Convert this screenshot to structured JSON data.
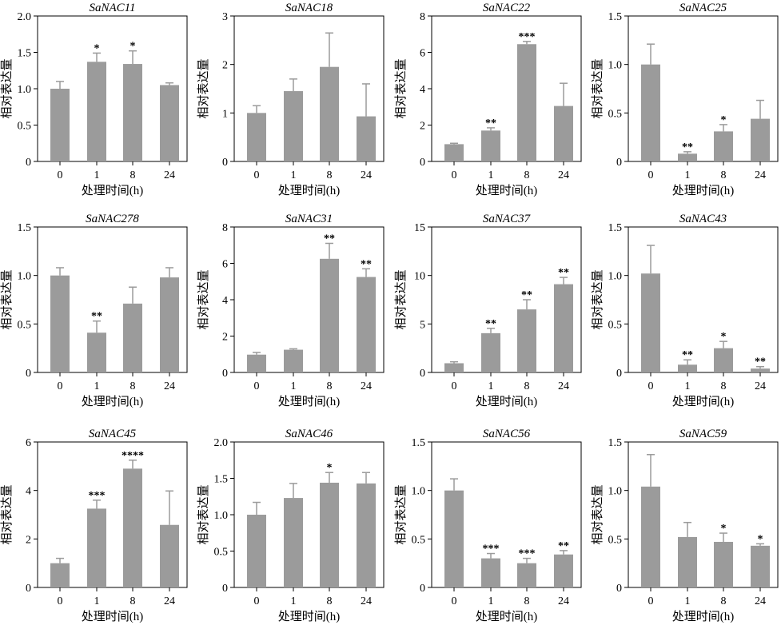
{
  "chart_data": [
    {
      "type": "bar",
      "title": "SaNAC11",
      "categories": [
        "0",
        "1",
        "8",
        "24"
      ],
      "values": [
        1.0,
        1.37,
        1.34,
        1.05
      ],
      "errors": [
        0.1,
        0.12,
        0.18,
        0.03
      ],
      "significance": [
        "",
        "*",
        "*",
        ""
      ],
      "ylim": [
        0,
        2.0
      ],
      "yticks": [
        "0",
        "0.5",
        "1.0",
        "1.5",
        "2.0"
      ],
      "xlabel": "处理时间(h)",
      "ylabel": "相对表达量"
    },
    {
      "type": "bar",
      "title": "SaNAC18",
      "categories": [
        "0",
        "1",
        "8",
        "24"
      ],
      "values": [
        1.0,
        1.45,
        1.95,
        0.93
      ],
      "errors": [
        0.15,
        0.25,
        0.7,
        0.67
      ],
      "significance": [
        "",
        "",
        "",
        ""
      ],
      "ylim": [
        0,
        3
      ],
      "yticks": [
        "0",
        "1",
        "2",
        "3"
      ],
      "xlabel": "处理时间(h)",
      "ylabel": "相对表达量"
    },
    {
      "type": "bar",
      "title": "SaNAC22",
      "categories": [
        "0",
        "1",
        "8",
        "24"
      ],
      "values": [
        0.95,
        1.7,
        6.45,
        3.05
      ],
      "errors": [
        0.05,
        0.15,
        0.15,
        1.25
      ],
      "significance": [
        "",
        "**",
        "***",
        ""
      ],
      "ylim": [
        0,
        8
      ],
      "yticks": [
        "0",
        "2",
        "4",
        "6",
        "8"
      ],
      "xlabel": "处理时间(h)",
      "ylabel": "相对表达量"
    },
    {
      "type": "bar",
      "title": "SaNAC25",
      "categories": [
        "0",
        "1",
        "8",
        "24"
      ],
      "values": [
        1.0,
        0.08,
        0.31,
        0.44
      ],
      "errors": [
        0.21,
        0.02,
        0.07,
        0.19
      ],
      "significance": [
        "",
        "**",
        "*",
        ""
      ],
      "ylim": [
        0,
        1.5
      ],
      "yticks": [
        "0",
        "0.5",
        "1.0",
        "1.5"
      ],
      "xlabel": "处理时间(h)",
      "ylabel": "相对表达量"
    },
    {
      "type": "bar",
      "title": "SaNAC278",
      "categories": [
        "0",
        "1",
        "8",
        "24"
      ],
      "values": [
        1.0,
        0.41,
        0.71,
        0.98
      ],
      "errors": [
        0.08,
        0.12,
        0.17,
        0.1
      ],
      "significance": [
        "",
        "**",
        "",
        ""
      ],
      "ylim": [
        0,
        1.5
      ],
      "yticks": [
        "0",
        "0.5",
        "1.0",
        "1.5"
      ],
      "xlabel": "处理时间(h)",
      "ylabel": "相对表达量"
    },
    {
      "type": "bar",
      "title": "SaNAC31",
      "categories": [
        "0",
        "1",
        "8",
        "24"
      ],
      "values": [
        0.98,
        1.25,
        6.25,
        5.25
      ],
      "errors": [
        0.12,
        0.05,
        0.85,
        0.45
      ],
      "significance": [
        "",
        "",
        "**",
        "**"
      ],
      "ylim": [
        0,
        8
      ],
      "yticks": [
        "0",
        "2",
        "4",
        "6",
        "8"
      ],
      "xlabel": "处理时间(h)",
      "ylabel": "相对表达量"
    },
    {
      "type": "bar",
      "title": "SaNAC37",
      "categories": [
        "0",
        "1",
        "8",
        "24"
      ],
      "values": [
        0.95,
        4.05,
        6.5,
        9.1
      ],
      "errors": [
        0.15,
        0.5,
        1.0,
        0.7
      ],
      "significance": [
        "",
        "**",
        "**",
        "**"
      ],
      "ylim": [
        0,
        15
      ],
      "yticks": [
        "0",
        "5",
        "10",
        "15"
      ],
      "xlabel": "处理时间(h)",
      "ylabel": "相对表达量"
    },
    {
      "type": "bar",
      "title": "SaNAC43",
      "categories": [
        "0",
        "1",
        "8",
        "24"
      ],
      "values": [
        1.02,
        0.08,
        0.25,
        0.04
      ],
      "errors": [
        0.29,
        0.05,
        0.07,
        0.02
      ],
      "significance": [
        "",
        "**",
        "*",
        "**"
      ],
      "ylim": [
        0,
        1.5
      ],
      "yticks": [
        "0",
        "0.5",
        "1.0",
        "1.5"
      ],
      "xlabel": "处理时间(h)",
      "ylabel": "相对表达量"
    },
    {
      "type": "bar",
      "title": "SaNAC45",
      "categories": [
        "0",
        "1",
        "8",
        "24"
      ],
      "values": [
        1.0,
        3.25,
        4.9,
        2.58
      ],
      "errors": [
        0.2,
        0.35,
        0.35,
        1.4
      ],
      "significance": [
        "",
        "***",
        "****",
        ""
      ],
      "ylim": [
        0,
        6
      ],
      "yticks": [
        "0",
        "2",
        "4",
        "6"
      ],
      "xlabel": "处理时间(h)",
      "ylabel": "相对表达量"
    },
    {
      "type": "bar",
      "title": "SaNAC46",
      "categories": [
        "0",
        "1",
        "8",
        "24"
      ],
      "values": [
        1.0,
        1.23,
        1.44,
        1.43
      ],
      "errors": [
        0.17,
        0.2,
        0.14,
        0.15
      ],
      "significance": [
        "",
        "",
        "*",
        ""
      ],
      "ylim": [
        0,
        2.0
      ],
      "yticks": [
        "0",
        "0.5",
        "1.0",
        "1.5",
        "2.0"
      ],
      "xlabel": "处理时间(h)",
      "ylabel": "相对表达量"
    },
    {
      "type": "bar",
      "title": "SaNAC56",
      "categories": [
        "0",
        "1",
        "8",
        "24"
      ],
      "values": [
        1.0,
        0.3,
        0.25,
        0.34
      ],
      "errors": [
        0.12,
        0.05,
        0.05,
        0.04
      ],
      "significance": [
        "",
        "***",
        "***",
        "**"
      ],
      "ylim": [
        0,
        1.5
      ],
      "yticks": [
        "0",
        "0.5",
        "1.0",
        "1.5"
      ],
      "xlabel": "处理时间(h)",
      "ylabel": "相对表达量"
    },
    {
      "type": "bar",
      "title": "SaNAC59",
      "categories": [
        "0",
        "1",
        "8",
        "24"
      ],
      "values": [
        1.04,
        0.52,
        0.47,
        0.43
      ],
      "errors": [
        0.33,
        0.15,
        0.09,
        0.02
      ],
      "significance": [
        "",
        "",
        "*",
        "*"
      ],
      "ylim": [
        0,
        1.5
      ],
      "yticks": [
        "0",
        "0.5",
        "1.0",
        "1.5"
      ],
      "xlabel": "处理时间(h)",
      "ylabel": "相对表达量"
    }
  ],
  "colors": {
    "bar": "#9b9b9b",
    "axis": "#000000",
    "background": "#ffffff"
  }
}
